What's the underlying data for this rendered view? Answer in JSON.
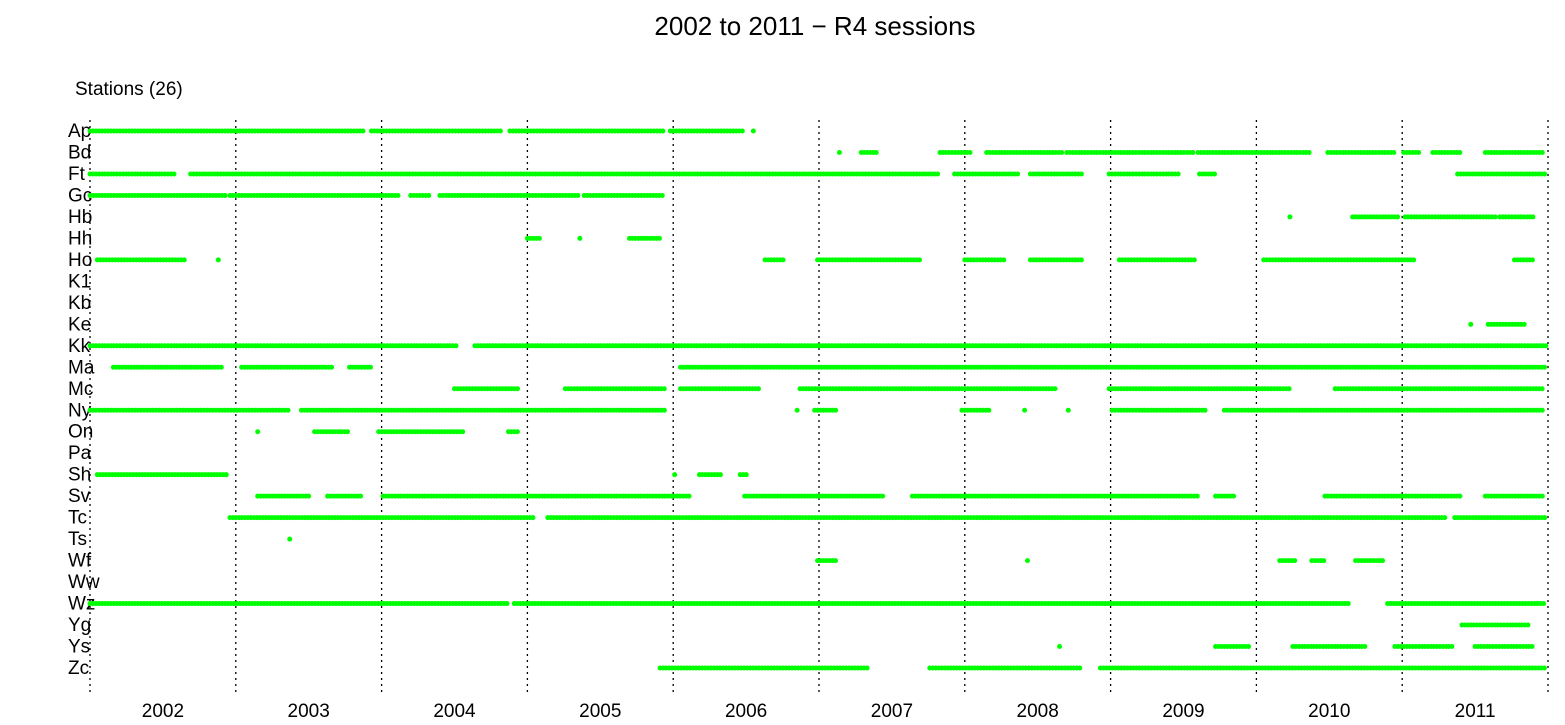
{
  "chart_data": {
    "type": "timeline",
    "title": "2002 to 2011 − R4 sessions",
    "y_label": "Stations (26)",
    "categories": [
      "2002",
      "2003",
      "2004",
      "2005",
      "2006",
      "2007",
      "2008",
      "2009",
      "2010",
      "2011"
    ],
    "xlim": [
      2002,
      2012
    ],
    "xticks": [
      2002,
      2003,
      2004,
      2005,
      2006,
      2007,
      2008,
      2009,
      2010,
      2011,
      2012
    ],
    "color": "#00ff00",
    "series": [
      {
        "name": "Ap",
        "intervals": [
          [
            2002.0,
            2003.89
          ],
          [
            2003.93,
            2004.83
          ],
          [
            2004.88,
            2005.94
          ],
          [
            2005.98,
            2006.49
          ],
          [
            2006.55,
            2006.55
          ]
        ]
      },
      {
        "name": "Bd",
        "intervals": [
          [
            2007.14,
            2007.14
          ],
          [
            2007.29,
            2007.4
          ],
          [
            2007.83,
            2008.05
          ],
          [
            2008.15,
            2008.67
          ],
          [
            2008.7,
            2009.58
          ],
          [
            2009.6,
            2010.37
          ],
          [
            2010.49,
            2010.95
          ],
          [
            2011.01,
            2011.12
          ],
          [
            2011.21,
            2011.4
          ],
          [
            2011.57,
            2011.98
          ]
        ]
      },
      {
        "name": "Ft",
        "intervals": [
          [
            2002.0,
            2002.58
          ],
          [
            2002.69,
            2007.83
          ],
          [
            2007.93,
            2008.38
          ],
          [
            2008.45,
            2008.82
          ],
          [
            2008.99,
            2009.48
          ],
          [
            2009.61,
            2009.72
          ],
          [
            2011.38,
            2011.98
          ]
        ]
      },
      {
        "name": "Gc",
        "intervals": [
          [
            2002.0,
            2002.93
          ],
          [
            2002.96,
            2004.13
          ],
          [
            2004.2,
            2004.33
          ],
          [
            2004.4,
            2005.36
          ],
          [
            2005.39,
            2005.94
          ]
        ]
      },
      {
        "name": "Hb",
        "intervals": [
          [
            2010.23,
            2010.23
          ],
          [
            2010.66,
            2010.97
          ],
          [
            2011.02,
            2011.64
          ],
          [
            2011.67,
            2011.91
          ]
        ]
      },
      {
        "name": "Hh",
        "intervals": [
          [
            2005.0,
            2005.1
          ],
          [
            2005.36,
            2005.36
          ],
          [
            2005.7,
            2005.91
          ]
        ]
      },
      {
        "name": "Ho",
        "intervals": [
          [
            2002.05,
            2002.65
          ],
          [
            2002.88,
            2002.88
          ],
          [
            2006.63,
            2006.77
          ],
          [
            2006.99,
            2007.69
          ],
          [
            2008.0,
            2008.28
          ],
          [
            2008.45,
            2008.82
          ],
          [
            2009.06,
            2009.58
          ],
          [
            2010.05,
            2011.09
          ],
          [
            2011.77,
            2011.91
          ]
        ]
      },
      {
        "name": "K1",
        "intervals": []
      },
      {
        "name": "Kb",
        "intervals": []
      },
      {
        "name": "Ke",
        "intervals": [
          [
            2011.47,
            2011.47
          ],
          [
            2011.59,
            2011.84
          ]
        ]
      },
      {
        "name": "Kk",
        "intervals": [
          [
            2002.0,
            2004.52
          ],
          [
            2004.64,
            2011.99
          ]
        ]
      },
      {
        "name": "Ma",
        "intervals": [
          [
            2002.16,
            2002.91
          ],
          [
            2003.04,
            2003.67
          ],
          [
            2003.78,
            2003.93
          ],
          [
            2006.05,
            2011.98
          ]
        ]
      },
      {
        "name": "Mc",
        "intervals": [
          [
            2004.5,
            2004.95
          ],
          [
            2005.26,
            2005.94
          ],
          [
            2006.05,
            2006.6
          ],
          [
            2006.87,
            2008.62
          ],
          [
            2008.99,
            2010.23
          ],
          [
            2010.54,
            2011.98
          ]
        ]
      },
      {
        "name": "Ny",
        "intervals": [
          [
            2002.0,
            2003.37
          ],
          [
            2003.45,
            2005.94
          ],
          [
            2006.85,
            2006.85
          ],
          [
            2006.97,
            2007.13
          ],
          [
            2007.98,
            2008.17
          ],
          [
            2008.41,
            2008.41
          ],
          [
            2008.71,
            2008.71
          ],
          [
            2009.01,
            2009.65
          ],
          [
            2009.78,
            2011.98
          ]
        ]
      },
      {
        "name": "On",
        "intervals": [
          [
            2003.15,
            2003.15
          ],
          [
            2003.54,
            2003.78
          ],
          [
            2003.98,
            2004.57
          ],
          [
            2004.87,
            2004.94
          ]
        ]
      },
      {
        "name": "Pa",
        "intervals": []
      },
      {
        "name": "Sh",
        "intervals": [
          [
            2002.05,
            2002.95
          ],
          [
            2006.01,
            2006.01
          ],
          [
            2006.18,
            2006.33
          ],
          [
            2006.46,
            2006.51
          ]
        ]
      },
      {
        "name": "Sv",
        "intervals": [
          [
            2003.15,
            2003.51
          ],
          [
            2003.63,
            2003.87
          ],
          [
            2004.01,
            2006.12
          ],
          [
            2006.49,
            2007.45
          ],
          [
            2007.64,
            2009.61
          ],
          [
            2009.72,
            2009.85
          ],
          [
            2010.47,
            2011.4
          ],
          [
            2011.57,
            2011.98
          ]
        ]
      },
      {
        "name": "Tc",
        "intervals": [
          [
            2002.96,
            2005.05
          ],
          [
            2005.14,
            2011.3
          ],
          [
            2011.36,
            2011.98
          ]
        ]
      },
      {
        "name": "Ts",
        "intervals": [
          [
            2003.37,
            2003.37
          ]
        ]
      },
      {
        "name": "Wf",
        "intervals": [
          [
            2006.99,
            2007.13
          ],
          [
            2008.43,
            2008.43
          ],
          [
            2010.16,
            2010.27
          ],
          [
            2010.38,
            2010.47
          ],
          [
            2010.68,
            2010.88
          ]
        ]
      },
      {
        "name": "Ww",
        "intervals": []
      },
      {
        "name": "Wz",
        "intervals": [
          [
            2002.0,
            2004.87
          ],
          [
            2004.91,
            2010.64
          ],
          [
            2010.9,
            2011.98
          ]
        ]
      },
      {
        "name": "Yg",
        "intervals": [
          [
            2011.41,
            2011.88
          ]
        ]
      },
      {
        "name": "Ys",
        "intervals": [
          [
            2008.65,
            2008.65
          ],
          [
            2009.72,
            2009.96
          ],
          [
            2010.25,
            2010.75
          ],
          [
            2010.95,
            2011.36
          ],
          [
            2011.5,
            2011.91
          ]
        ]
      },
      {
        "name": "Zc",
        "intervals": [
          [
            2005.91,
            2007.34
          ],
          [
            2007.76,
            2008.79
          ],
          [
            2008.93,
            2011.98
          ]
        ]
      }
    ]
  }
}
